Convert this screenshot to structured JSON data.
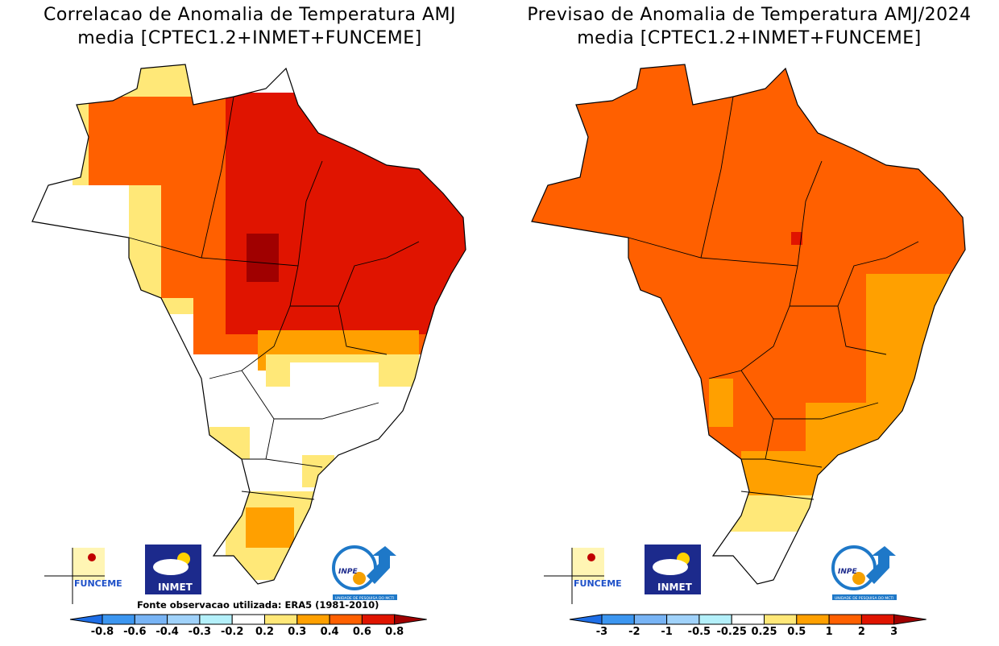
{
  "panels": [
    {
      "title_line1": "Correlacao de Anomalia de Temperatura AMJ",
      "title_line2": "media [CPTEC1.2+INMET+FUNCEME]",
      "source_note": "Fonte observacao utilizada: ERA5 (1981-2010)",
      "colorbar": {
        "ticks": [
          "-0.8",
          "-0.6",
          "-0.4",
          "-0.3",
          "-0.2",
          "0.2",
          "0.3",
          "0.4",
          "0.6",
          "0.8"
        ],
        "colors": [
          "#1e6ee6",
          "#3c96f0",
          "#78b4f5",
          "#a0d2fa",
          "#b4f0fa",
          "#ffffff",
          "#ffe878",
          "#ffa000",
          "#ff6000",
          "#e01400",
          "#a00000"
        ]
      }
    },
    {
      "title_line1": "Previsao de Anomalia de Temperatura AMJ/2024",
      "title_line2": "media [CPTEC1.2+INMET+FUNCEME]",
      "colorbar": {
        "ticks": [
          "-3",
          "-2",
          "-1",
          "-0.5",
          "-0.25",
          "0.25",
          "0.5",
          "1",
          "2",
          "3"
        ],
        "colors": [
          "#1e6ee6",
          "#3c96f0",
          "#78b4f5",
          "#a0d2fa",
          "#b4f0fa",
          "#ffffff",
          "#ffe878",
          "#ffa000",
          "#ff6000",
          "#e01400",
          "#a00000"
        ]
      }
    }
  ],
  "logos": {
    "funceme": "FUNCEME",
    "inmet": "INMET",
    "inpe": "INPE",
    "inpe_sub": "UNIDADE DE PESQUISA DO MCTI"
  }
}
